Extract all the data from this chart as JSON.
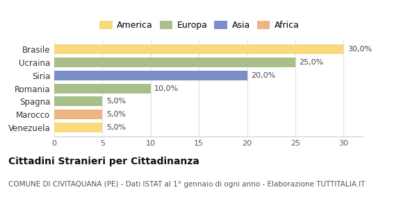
{
  "categories": [
    "Venezuela",
    "Marocco",
    "Spagna",
    "Romania",
    "Siria",
    "Ucraina",
    "Brasile"
  ],
  "values": [
    5.0,
    5.0,
    5.0,
    10.0,
    20.0,
    25.0,
    30.0
  ],
  "bar_colors": [
    "#f9d97c",
    "#f0b482",
    "#a8bf8a",
    "#a8bf8a",
    "#7b8ec8",
    "#a8bf8a",
    "#f9d97c"
  ],
  "labels": [
    "5,0%",
    "5,0%",
    "5,0%",
    "10,0%",
    "20,0%",
    "25,0%",
    "30,0%"
  ],
  "xlim": [
    0,
    32
  ],
  "xticks": [
    0,
    5,
    10,
    15,
    20,
    25,
    30
  ],
  "legend_items": [
    {
      "label": "America",
      "color": "#f9d97c"
    },
    {
      "label": "Europa",
      "color": "#a8bf8a"
    },
    {
      "label": "Asia",
      "color": "#7b8ec8"
    },
    {
      "label": "Africa",
      "color": "#f0b482"
    }
  ],
  "title": "Cittadini Stranieri per Cittadinanza",
  "subtitle": "COMUNE DI CIVITAQUANA (PE) - Dati ISTAT al 1° gennaio di ogni anno - Elaborazione TUTTITALIA.IT",
  "background_color": "#ffffff",
  "plot_bg_color": "#ffffff",
  "bar_height": 0.75,
  "label_fontsize": 8,
  "ytick_fontsize": 8.5,
  "xtick_fontsize": 8,
  "title_fontsize": 10,
  "subtitle_fontsize": 7.5
}
